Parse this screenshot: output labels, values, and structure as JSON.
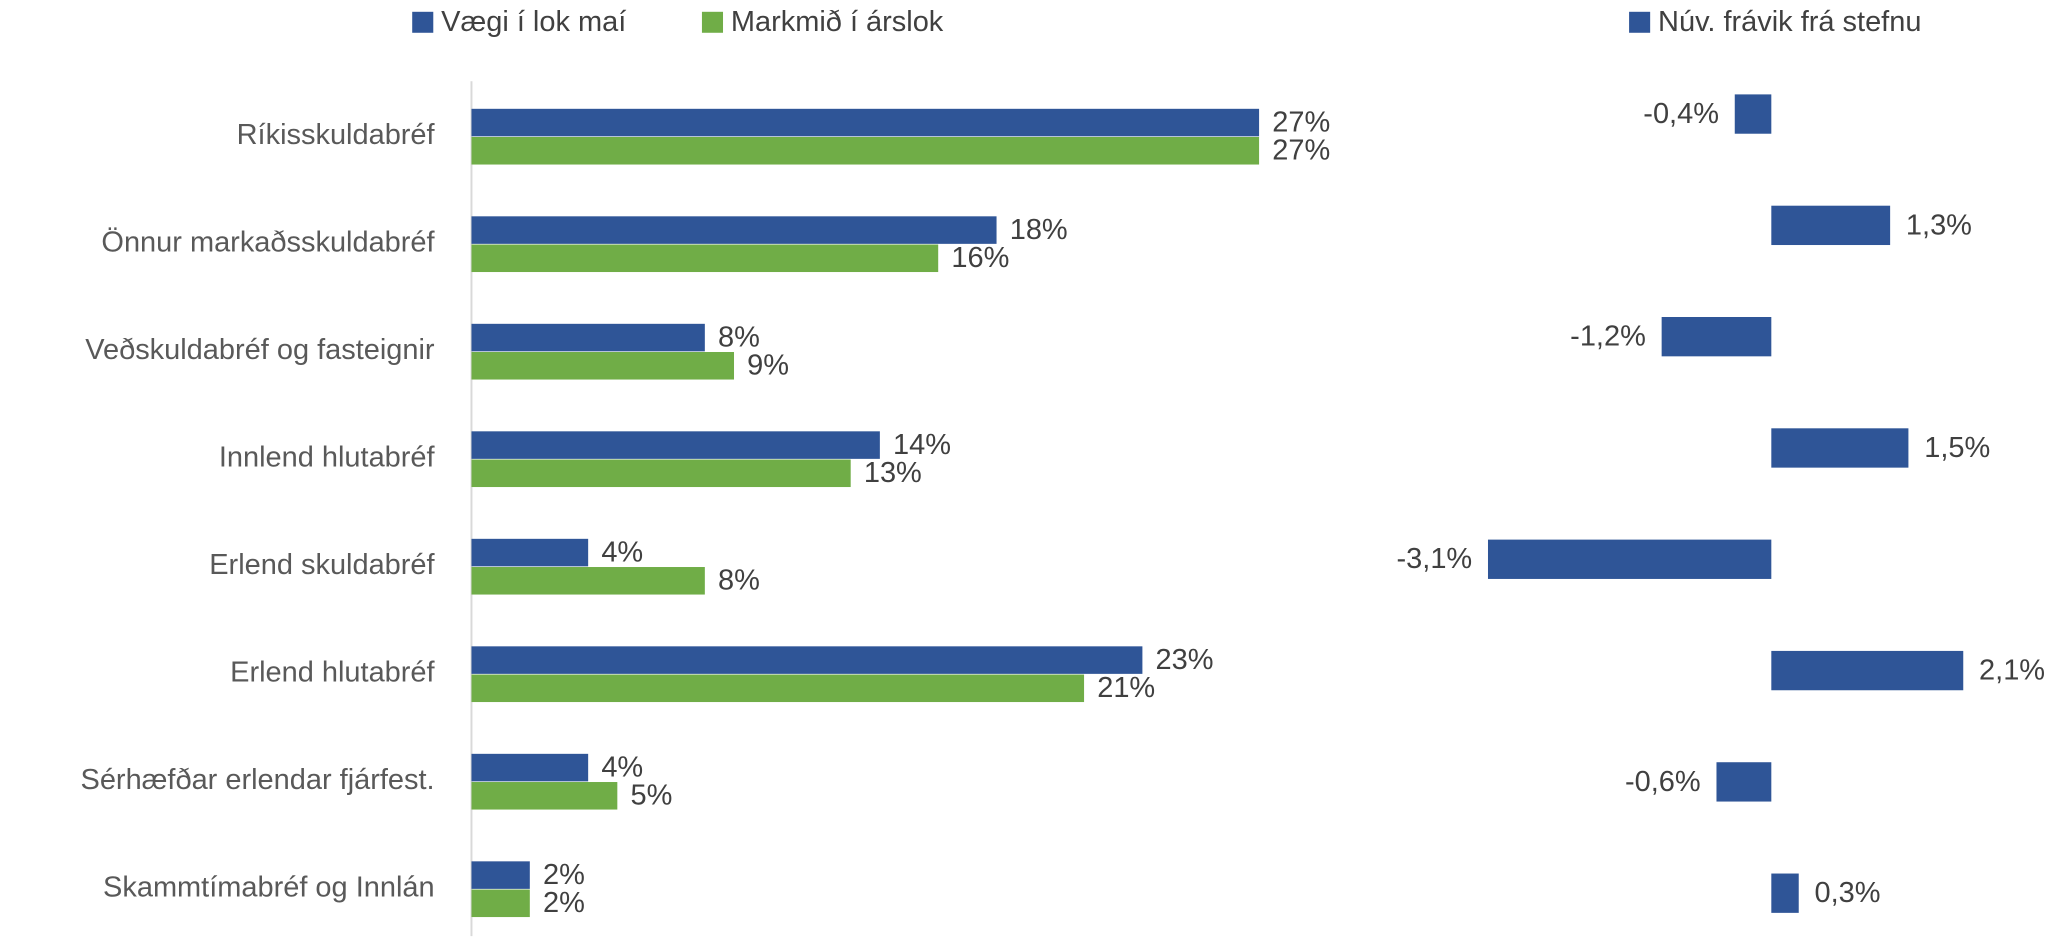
{
  "chart_data": [
    {
      "type": "bar",
      "orientation": "horizontal",
      "categories": [
        "Ríkisskuldabréf",
        "Önnur markaðsskuldabréf",
        "Veðskuldabréf og fasteignir",
        "Innlend hlutabréf",
        "Erlend skuldabréf",
        "Erlend hlutabréf",
        "Sérhæfðar erlendar fjárfest.",
        "Skammtímabréf og Innlán"
      ],
      "series": [
        {
          "name": "Vægi í lok maí",
          "color": "#2f5597",
          "values": [
            27,
            18,
            8,
            14,
            4,
            23,
            4,
            2
          ],
          "value_labels": [
            "27%",
            "18%",
            "8%",
            "14%",
            "4%",
            "23%",
            "4%",
            "2%"
          ]
        },
        {
          "name": "Markmið í árslok",
          "color": "#70ad47",
          "values": [
            27,
            16,
            9,
            13,
            8,
            21,
            5,
            2
          ],
          "value_labels": [
            "27%",
            "16%",
            "9%",
            "13%",
            "8%",
            "21%",
            "5%",
            "2%"
          ]
        }
      ]
    },
    {
      "type": "diverging-bar",
      "orientation": "horizontal",
      "series": [
        {
          "name": "Núv. frávik frá stefnu",
          "color": "#2f5597",
          "values": [
            -0.4,
            1.3,
            -1.2,
            1.5,
            -3.1,
            2.1,
            -0.6,
            0.3
          ],
          "value_labels": [
            "-0,4%",
            "1,3%",
            "-1,2%",
            "1,5%",
            "-3,1%",
            "2,1%",
            "-0,6%",
            "0,3%"
          ]
        }
      ]
    }
  ]
}
